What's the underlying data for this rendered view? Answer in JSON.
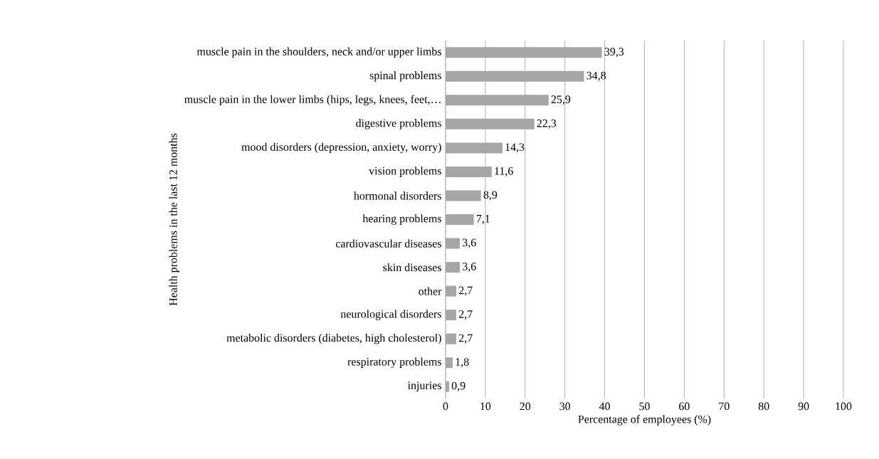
{
  "chart_data": {
    "type": "bar",
    "orientation": "horizontal",
    "xlabel": "Percentage of employees (%)",
    "ylabel": "Health problems in the last 12 months",
    "categories": [
      "muscle pain in the shoulders, neck and/or upper limbs",
      "spinal problems",
      "muscle pain in the lower limbs (hips, legs, knees, feet,…",
      "digestive problems",
      "mood disorders (depression, anxiety, worry)",
      "vision problems",
      "hormonal disorders",
      "hearing problems",
      "cardiovascular diseases",
      "skin diseases",
      "other",
      "neurological disorders",
      "metabolic disorders (diabetes, high cholesterol)",
      "respiratory problems",
      "injuries"
    ],
    "values": [
      39.3,
      34.8,
      25.9,
      22.3,
      14.3,
      11.6,
      8.9,
      7.1,
      3.6,
      3.6,
      2.7,
      2.7,
      2.7,
      1.8,
      0.9
    ],
    "value_labels": [
      "39,3",
      "34,8",
      "25,9",
      "22,3",
      "14,3",
      "11,6",
      "8,9",
      "7,1",
      "3,6",
      "3,6",
      "2,7",
      "2,7",
      "2,7",
      "1,8",
      "0,9"
    ],
    "color": "#a6a6a6",
    "xlim": [
      0,
      100
    ],
    "xticks": [
      0,
      10,
      20,
      30,
      40,
      50,
      60,
      70,
      80,
      90,
      100
    ],
    "grid": "x"
  }
}
